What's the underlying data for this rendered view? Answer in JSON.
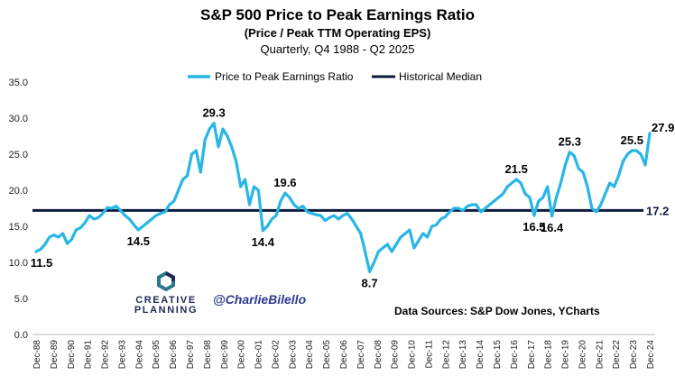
{
  "title": "S&P 500 Price to Peak Earnings Ratio",
  "subtitle1": "(Price / Peak TTM Operating EPS)",
  "subtitle2": "Quarterly, Q4 1988 - Q2 2025",
  "legend": {
    "series": "Price to Peak Earnings Ratio",
    "median": "Historical Median"
  },
  "branding": {
    "line1": "CREATIVE",
    "line2": "PLANNING",
    "handle": "@CharlieBilello"
  },
  "source": "Data Sources: S&P Dow Jones, YCharts",
  "colors": {
    "series": "#29b6e6",
    "median": "#0d1b3e",
    "logo": "#2b7a8c"
  },
  "chart_data": {
    "type": "line",
    "ylim": [
      0,
      35
    ],
    "yticks": [
      "0.0",
      "5.0",
      "10.0",
      "15.0",
      "20.0",
      "25.0",
      "30.0",
      "35.0"
    ],
    "xticks": [
      "Dec-88",
      "Dec-89",
      "Dec-90",
      "Dec-91",
      "Dec-92",
      "Dec-93",
      "Dec-94",
      "Dec-95",
      "Dec-96",
      "Dec-97",
      "Dec-98",
      "Dec-99",
      "Dec-00",
      "Dec-01",
      "Dec-02",
      "Dec-03",
      "Dec-04",
      "Dec-05",
      "Dec-06",
      "Dec-07",
      "Dec-08",
      "Dec-09",
      "Dec-10",
      "Dec-11",
      "Dec-12",
      "Dec-13",
      "Dec-14",
      "Dec-15",
      "Dec-16",
      "Dec-17",
      "Dec-18",
      "Dec-19",
      "Dec-20",
      "Dec-21",
      "Dec-22",
      "Dec-23",
      "Dec-24"
    ],
    "median": 17.2,
    "series": [
      {
        "name": "Price to Peak Earnings Ratio",
        "values": [
          11.5,
          11.8,
          12.5,
          13.5,
          13.8,
          13.5,
          14.0,
          12.6,
          13.2,
          14.5,
          14.8,
          15.5,
          16.5,
          16.0,
          16.2,
          16.8,
          17.6,
          17.5,
          17.8,
          17.2,
          16.5,
          16.0,
          15.2,
          14.5,
          15.0,
          15.5,
          16.0,
          16.5,
          16.8,
          17.0,
          18.0,
          18.5,
          20.0,
          21.5,
          22.0,
          25.0,
          25.5,
          22.5,
          27.0,
          28.5,
          29.3,
          26.0,
          28.5,
          27.5,
          26.0,
          24.0,
          20.5,
          21.5,
          18.0,
          20.5,
          20.0,
          14.4,
          15.0,
          16.0,
          16.5,
          18.5,
          19.6,
          19.0,
          18.0,
          17.5,
          17.8,
          17.0,
          16.8,
          16.6,
          16.5,
          15.8,
          16.2,
          16.5,
          16.0,
          16.5,
          16.8,
          16.0,
          15.0,
          14.0,
          11.5,
          8.7,
          10.0,
          11.5,
          12.0,
          12.5,
          11.5,
          12.5,
          13.5,
          14.0,
          14.5,
          12.0,
          13.0,
          14.0,
          13.5,
          15.0,
          15.2,
          16.0,
          16.3,
          17.0,
          17.5,
          17.5,
          17.2,
          17.8,
          18.0,
          18.0,
          17.0,
          17.5,
          18.0,
          18.5,
          19.0,
          19.5,
          20.5,
          21.0,
          21.5,
          21.0,
          19.5,
          19.0,
          16.5,
          18.5,
          19.0,
          20.5,
          16.4,
          19.0,
          21.0,
          23.5,
          25.3,
          24.8,
          23.0,
          22.5,
          20.5,
          17.5,
          17.0,
          18.0,
          19.5,
          21.0,
          20.5,
          22.0,
          24.0,
          25.0,
          25.5,
          25.5,
          25.0,
          23.5,
          27.9
        ]
      }
    ],
    "annotations": [
      {
        "label": "11.5",
        "index": 0
      },
      {
        "label": "29.3",
        "index": 40
      },
      {
        "label": "14.5",
        "index": 23
      },
      {
        "label": "14.4",
        "index": 51
      },
      {
        "label": "19.6",
        "index": 56
      },
      {
        "label": "8.7",
        "index": 75
      },
      {
        "label": "21.5",
        "index": 108
      },
      {
        "label": "16.5",
        "index": 112
      },
      {
        "label": "16.4",
        "index": 116
      },
      {
        "label": "25.3",
        "index": 120
      },
      {
        "label": "25.5",
        "index": 134
      },
      {
        "label": "27.9",
        "index": 138
      },
      {
        "label": "17.2",
        "index": "median"
      }
    ]
  }
}
